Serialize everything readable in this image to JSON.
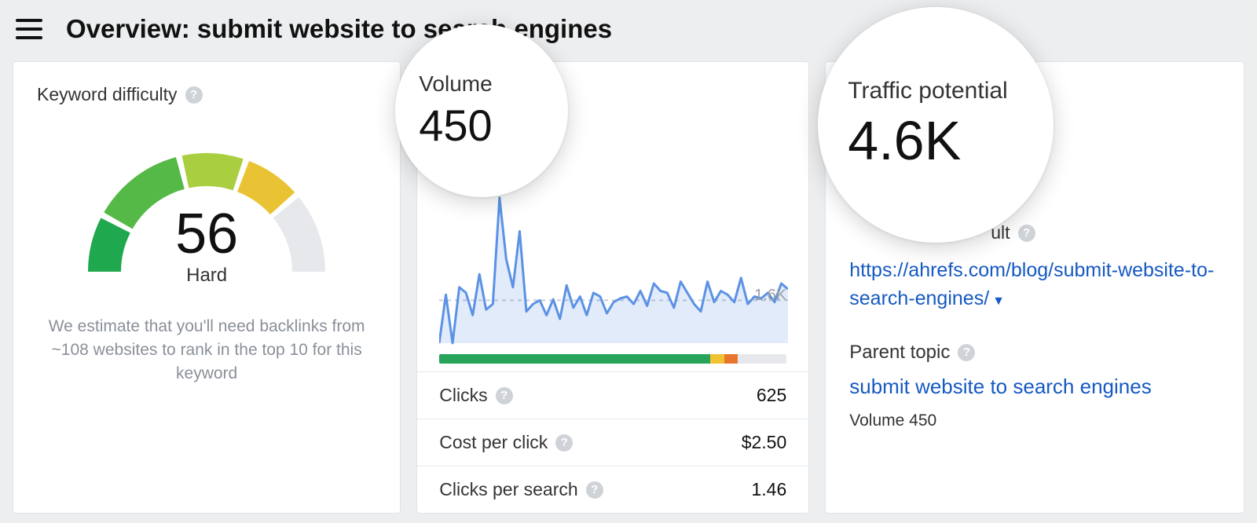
{
  "header": {
    "title": "Overview: submit website to search engines"
  },
  "difficulty": {
    "label": "Keyword difficulty",
    "score": "56",
    "rating": "Hard",
    "estimate": "We estimate that you'll need backlinks from ~108 websites to rank in the top 10 for this keyword",
    "gauge": {
      "segments": [
        {
          "start": 180,
          "end": 207,
          "color": "#1fa84d"
        },
        {
          "start": 210,
          "end": 255,
          "color": "#55b947"
        },
        {
          "start": 258,
          "end": 288,
          "color": "#a9ce3f"
        },
        {
          "start": 291,
          "end": 318,
          "color": "#e9c333"
        },
        {
          "start": 321,
          "end": 360,
          "color": "#e6e8eb"
        }
      ],
      "stroke_width": 42,
      "radius": 130
    }
  },
  "volume": {
    "bubble_label": "Volume",
    "bubble_value": "450",
    "chart": {
      "ymax_label": "1.6K",
      "ymax": 1600,
      "baseline": 460,
      "line_color": "#5b92e5",
      "fill_color": "rgba(91,146,229,0.18)",
      "dash_color": "#c9ccd1",
      "height": 190,
      "values": [
        0,
        520,
        0,
        600,
        540,
        300,
        740,
        360,
        420,
        1560,
        900,
        600,
        1200,
        340,
        420,
        460,
        300,
        470,
        260,
        620,
        380,
        500,
        300,
        540,
        500,
        320,
        440,
        480,
        500,
        420,
        560,
        400,
        640,
        560,
        540,
        380,
        660,
        540,
        420,
        340,
        660,
        440,
        560,
        520,
        440,
        700,
        420,
        500,
        480,
        540,
        440,
        640,
        580
      ]
    },
    "serp_bar": [
      {
        "color": "#27a35a",
        "pct": 78
      },
      {
        "color": "#f1c232",
        "pct": 4
      },
      {
        "color": "#e8762c",
        "pct": 4
      },
      {
        "color": "#e6e8eb",
        "pct": 14
      }
    ],
    "metrics": [
      {
        "label": "Clicks",
        "value": "625"
      },
      {
        "label": "Cost per click",
        "value": "$2.50"
      },
      {
        "label": "Clicks per search",
        "value": "1.46"
      }
    ]
  },
  "traffic": {
    "bubble_label": "Traffic potential",
    "bubble_value": "4.6K",
    "partial_label_tail": "ult",
    "url": "https://ahrefs.com/blog/submit-website-to-search-engines/",
    "parent_label": "Parent topic",
    "parent_topic": "submit website to search engines",
    "volume_small": "Volume 450"
  }
}
